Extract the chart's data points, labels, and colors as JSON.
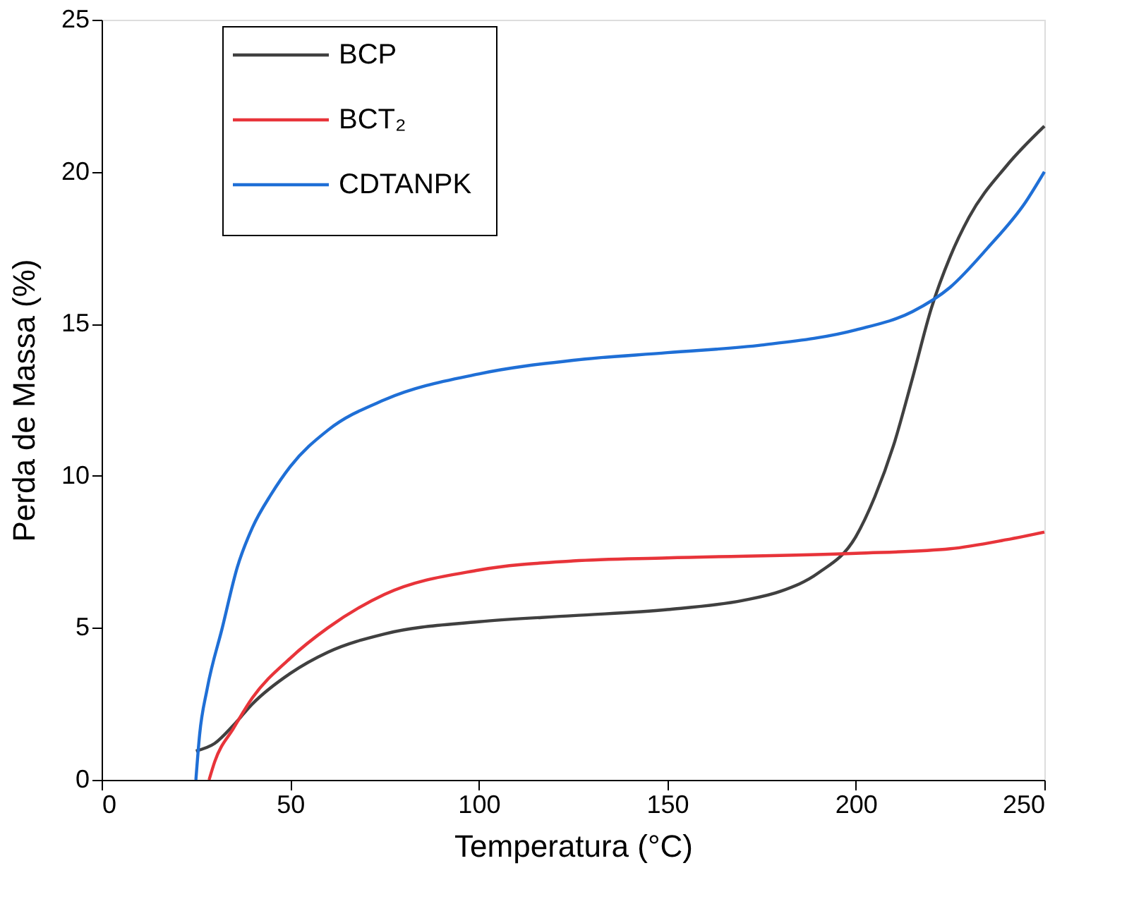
{
  "chart_data": {
    "type": "line",
    "xlabel": "Temperatura (°C)",
    "ylabel": "Perda de Massa (%)",
    "xlim": [
      0,
      250
    ],
    "ylim": [
      0,
      25
    ],
    "xticks": [
      0,
      50,
      100,
      150,
      200,
      250
    ],
    "yticks": [
      0,
      5,
      10,
      15,
      20,
      25
    ],
    "grid": false,
    "legend": "top left",
    "line_style": "solid",
    "marker": "none",
    "series": [
      {
        "name": "BCP",
        "color": "#404040",
        "x": [
          25,
          30,
          35,
          40,
          50,
          60,
          75,
          100,
          125,
          150,
          170,
          180,
          190,
          200,
          205,
          210,
          215,
          220,
          225,
          230,
          240,
          250
        ],
        "values": [
          0.95,
          1.2,
          1.8,
          2.5,
          3.5,
          4.2,
          4.8,
          5.2,
          5.4,
          5.6,
          5.9,
          6.2,
          6.8,
          8.0,
          9.3,
          11.0,
          13.2,
          15.5,
          17.2,
          18.5,
          20.2,
          21.5
        ]
      },
      {
        "name": "BCT₂",
        "color": "#e8343a",
        "x": [
          28.5,
          30,
          35,
          40,
          50,
          60,
          75,
          100,
          125,
          150,
          200,
          225,
          240,
          250
        ],
        "values": [
          0,
          0.6,
          1.7,
          2.7,
          4.0,
          5.0,
          6.1,
          6.9,
          7.2,
          7.3,
          7.45,
          7.6,
          7.9,
          8.15
        ]
      },
      {
        "name": "CDTANPK",
        "color": "#1f6fd6",
        "x": [
          25,
          26,
          28,
          32,
          36,
          40,
          45,
          50,
          60,
          75,
          100,
          125,
          150,
          175,
          200,
          215,
          225,
          235,
          245,
          250
        ],
        "values": [
          0,
          1.5,
          3,
          5,
          7,
          8.3,
          9.4,
          10.3,
          11.5,
          12.5,
          13.35,
          13.8,
          14.05,
          14.3,
          14.8,
          15.4,
          16.2,
          17.5,
          19,
          20
        ]
      }
    ]
  }
}
